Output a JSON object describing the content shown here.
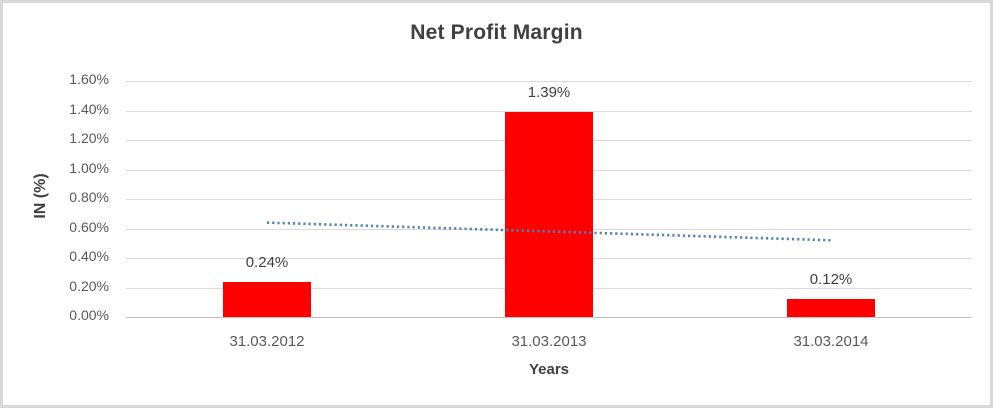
{
  "chart_data": {
    "type": "bar",
    "title": "Net Profit Margin",
    "xlabel": "Years",
    "ylabel": "IN (%)",
    "categories": [
      "31.03.2012",
      "31.03.2013",
      "31.03.2014"
    ],
    "values": [
      0.24,
      1.39,
      0.12
    ],
    "data_labels": [
      "0.24%",
      "1.39%",
      "0.12%"
    ],
    "ylim": [
      0,
      1.6
    ],
    "ytick_step": 0.2,
    "ytick_labels": [
      "0.00%",
      "0.20%",
      "0.40%",
      "0.60%",
      "0.80%",
      "1.00%",
      "1.20%",
      "1.40%",
      "1.60%"
    ],
    "grid": true,
    "legend": "none",
    "bar_color": "#ff0000",
    "gridline_color": "#d9d9d9",
    "axis_line_color": "#bfbfbf",
    "text_color": "#595959",
    "title_color": "#404040",
    "trendline": {
      "type": "linear",
      "style": "dotted",
      "color": "#4e81bd",
      "start_value": 0.64,
      "end_value": 0.52
    }
  }
}
